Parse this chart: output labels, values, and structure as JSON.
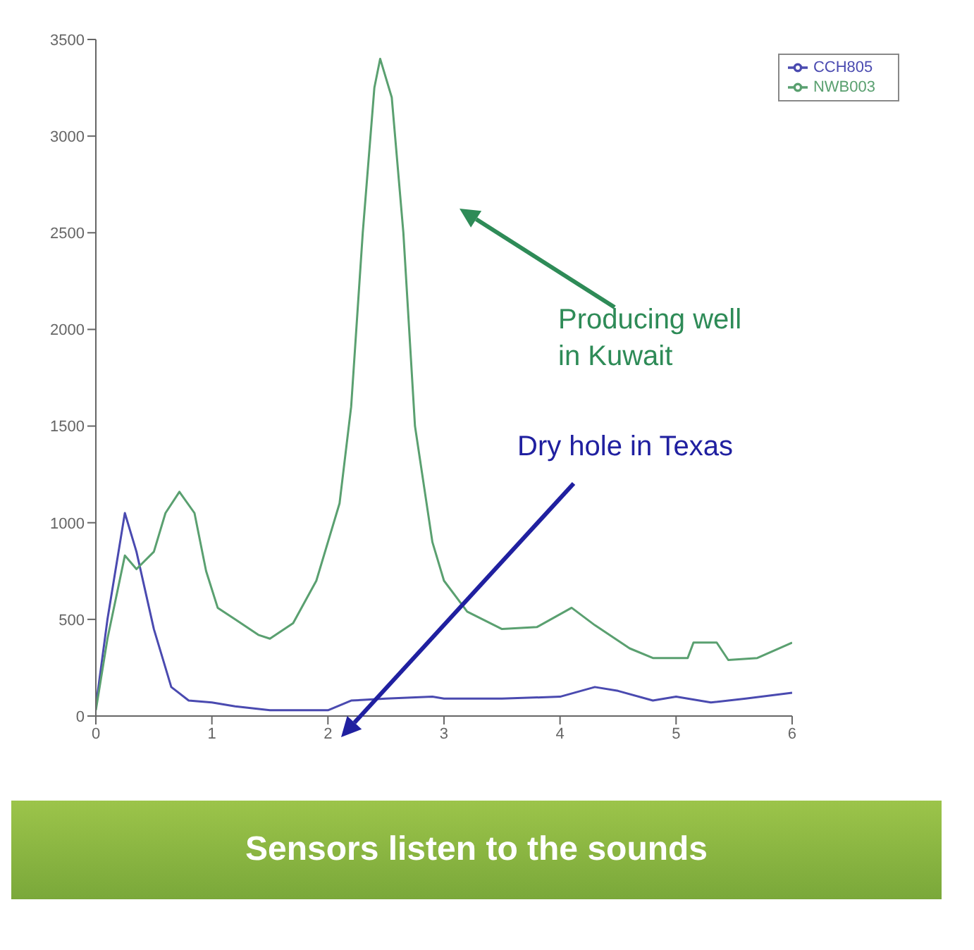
{
  "chart_data": {
    "type": "line",
    "xlim": [
      0,
      6
    ],
    "xticks": [
      0,
      1,
      2,
      3,
      4,
      5,
      6
    ],
    "ylim": [
      0,
      3500
    ],
    "yticks": [
      0,
      500,
      1000,
      1500,
      2000,
      2500,
      3000,
      3500
    ],
    "legend": "top right",
    "marker": "none",
    "line_style": "solid",
    "series": [
      {
        "name": "CCH805",
        "color": "#4a4ab0",
        "x": [
          0,
          0.1,
          0.25,
          0.35,
          0.5,
          0.65,
          0.8,
          1.0,
          1.2,
          1.5,
          1.8,
          2.0,
          2.2,
          2.5,
          2.9,
          3.0,
          3.5,
          4.0,
          4.3,
          4.5,
          4.8,
          5.0,
          5.3,
          5.6,
          6.0
        ],
        "values": [
          50,
          500,
          1050,
          850,
          450,
          150,
          80,
          70,
          50,
          30,
          30,
          30,
          80,
          90,
          100,
          90,
          90,
          100,
          150,
          130,
          80,
          100,
          70,
          90,
          120
        ]
      },
      {
        "name": "NWB003",
        "color": "#5aa070",
        "x": [
          0,
          0.1,
          0.25,
          0.35,
          0.5,
          0.6,
          0.72,
          0.85,
          0.95,
          1.05,
          1.2,
          1.4,
          1.5,
          1.7,
          1.9,
          2.1,
          2.2,
          2.3,
          2.4,
          2.45,
          2.55,
          2.65,
          2.75,
          2.9,
          3.0,
          3.2,
          3.5,
          3.8,
          4.1,
          4.3,
          4.6,
          4.8,
          5.1,
          5.15,
          5.35,
          5.45,
          5.7,
          6.0
        ],
        "values": [
          30,
          400,
          830,
          760,
          850,
          1050,
          1160,
          1050,
          750,
          560,
          500,
          420,
          400,
          480,
          700,
          1100,
          1600,
          2500,
          3250,
          3400,
          3200,
          2500,
          1500,
          900,
          700,
          540,
          450,
          460,
          560,
          470,
          350,
          300,
          300,
          380,
          380,
          290,
          300,
          380
        ]
      }
    ],
    "annotations": [
      "Producing well in Kuwait",
      "Dry hole in Texas",
      "Sensors listen to the sounds"
    ]
  }
}
